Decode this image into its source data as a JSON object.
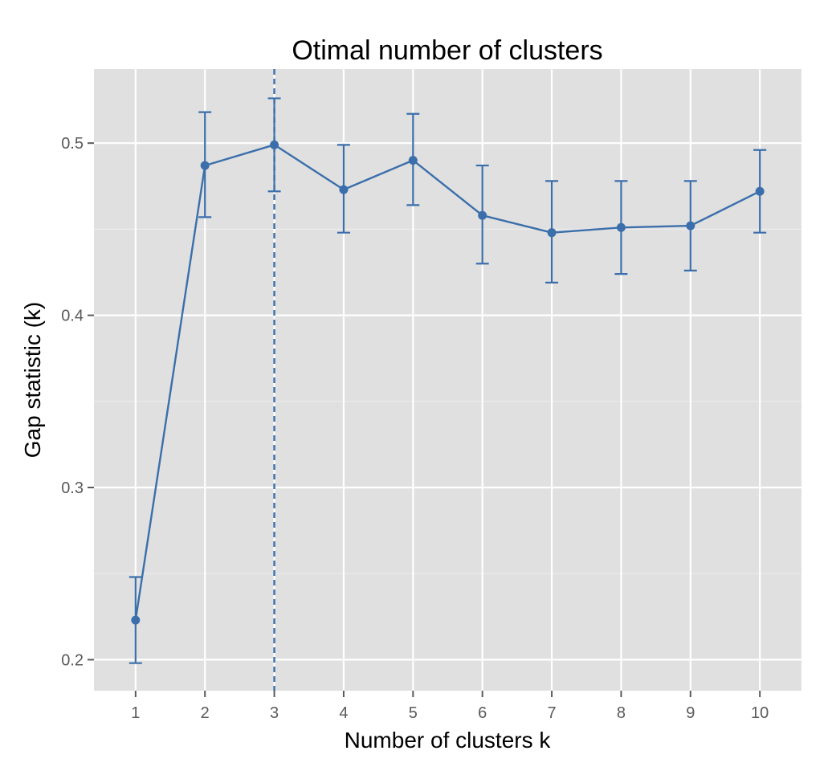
{
  "chart_data": {
    "type": "line",
    "title": "Otimal number of clusters",
    "xlabel": "Number of clusters k",
    "ylabel": "Gap statistic (k)",
    "x": [
      1,
      2,
      3,
      4,
      5,
      6,
      7,
      8,
      9,
      10
    ],
    "x_tick_labels": [
      "1",
      "2",
      "3",
      "4",
      "5",
      "6",
      "7",
      "8",
      "9",
      "10"
    ],
    "series": [
      {
        "values": [
          0.223,
          0.487,
          0.499,
          0.473,
          0.49,
          0.458,
          0.448,
          0.451,
          0.452,
          0.472
        ],
        "error_low": [
          0.198,
          0.457,
          0.472,
          0.448,
          0.464,
          0.43,
          0.419,
          0.424,
          0.426,
          0.448
        ],
        "error_high": [
          0.248,
          0.518,
          0.526,
          0.499,
          0.517,
          0.487,
          0.478,
          0.478,
          0.478,
          0.496
        ]
      }
    ],
    "optimal_k": 3,
    "xlim": [
      0.4,
      10.6
    ],
    "ylim": [
      0.182,
      0.543
    ],
    "y_ticks": [
      0.2,
      0.3,
      0.4,
      0.5
    ],
    "y_tick_labels": [
      "0.2",
      "0.3",
      "0.4",
      "0.5"
    ],
    "grid": true,
    "colors": {
      "series": "#3b6fab",
      "panel": "#e0e0e0",
      "grid_major": "#ffffff",
      "grid_minor": "#ececec"
    }
  }
}
